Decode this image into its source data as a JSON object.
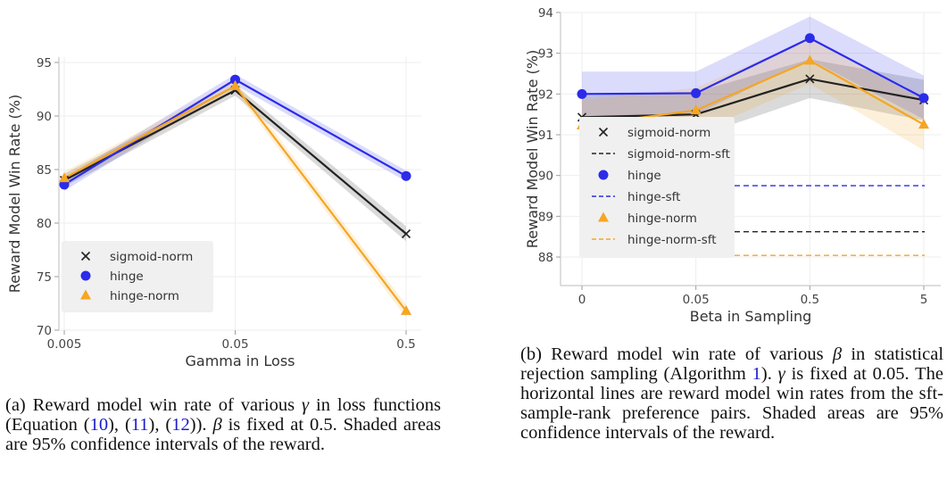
{
  "figures": [
    {
      "caption": {
        "label": "(a)",
        "parts": [
          {
            "t": "Reward model win rate of various "
          },
          {
            "t": "γ",
            "sym": true
          },
          {
            "t": " in loss functions (Equation ("
          },
          {
            "t": "10",
            "ref": true
          },
          {
            "t": "), ("
          },
          {
            "t": "11",
            "ref": true
          },
          {
            "t": "), ("
          },
          {
            "t": "12",
            "ref": true
          },
          {
            "t": ")). "
          },
          {
            "t": "β",
            "sym": true
          },
          {
            "t": " is fixed at 0.5. Shaded areas are 95% confidence intervals of the reward."
          }
        ]
      }
    },
    {
      "caption": {
        "label": "(b)",
        "parts": [
          {
            "t": "Reward model win rate of various "
          },
          {
            "t": "β",
            "sym": true
          },
          {
            "t": " in statistical rejection sampling (Algorithm "
          },
          {
            "t": "1",
            "ref": true
          },
          {
            "t": "). "
          },
          {
            "t": "γ",
            "sym": true
          },
          {
            "t": " is fixed at 0.05. The horizontal lines are reward model win rates from the sft-sample-rank preference pairs. Shaded areas are 95% confidence intervals of the reward."
          }
        ]
      }
    }
  ],
  "chart_data": [
    {
      "type": "line",
      "title": "",
      "xlabel": "Gamma in Loss",
      "ylabel": "Reward Model Win Rate (%)",
      "categories": [
        "0.005",
        "0.05",
        "0.5"
      ],
      "ylim": [
        70,
        95.5
      ],
      "yticks": [
        70,
        75,
        80,
        85,
        90,
        95
      ],
      "grid": true,
      "legend_placement": "lower-left",
      "series": [
        {
          "name": "sigmoid-norm",
          "marker": "x",
          "color": "#222222",
          "values": [
            84.0,
            92.4,
            79.0
          ],
          "ci_low": [
            83.4,
            91.9,
            78.3
          ],
          "ci_high": [
            84.6,
            92.9,
            79.7
          ]
        },
        {
          "name": "hinge",
          "marker": "circle",
          "color": "#2b2bea",
          "values": [
            83.6,
            93.4,
            84.4
          ],
          "ci_low": [
            83.0,
            92.9,
            83.9
          ],
          "ci_high": [
            84.2,
            93.9,
            84.9
          ]
        },
        {
          "name": "hinge-norm",
          "marker": "triangle",
          "color": "#f5a623",
          "values": [
            84.2,
            92.8,
            71.8
          ],
          "ci_low": [
            83.6,
            92.3,
            71.2
          ],
          "ci_high": [
            84.8,
            93.3,
            72.4
          ]
        }
      ]
    },
    {
      "type": "line",
      "title": "",
      "xlabel": "Beta in Sampling",
      "ylabel": "Reward Model Win Rate (%)",
      "categories": [
        "0",
        "0.05",
        "0.5",
        "5"
      ],
      "ylim": [
        87.3,
        94.0
      ],
      "yticks": [
        88,
        89,
        90,
        91,
        92,
        93,
        94
      ],
      "grid": true,
      "legend_placement": "lower-left",
      "series": [
        {
          "name": "sigmoid-norm",
          "marker": "x",
          "color": "#222222",
          "values": [
            91.43,
            91.5,
            92.37,
            91.85
          ],
          "ci_low": [
            90.9,
            90.95,
            91.9,
            91.35
          ],
          "ci_high": [
            91.95,
            92.05,
            92.85,
            92.35
          ]
        },
        {
          "name": "hinge",
          "marker": "circle",
          "color": "#2b2bea",
          "values": [
            92.0,
            92.02,
            93.37,
            91.9
          ],
          "ci_low": [
            91.45,
            91.5,
            92.85,
            91.38
          ],
          "ci_high": [
            92.55,
            92.55,
            93.9,
            92.45
          ]
        },
        {
          "name": "hinge-norm",
          "marker": "triangle",
          "color": "#f5a623",
          "values": [
            91.23,
            91.6,
            92.82,
            91.25
          ],
          "ci_low": [
            90.6,
            91.05,
            92.25,
            90.62
          ],
          "ci_high": [
            91.85,
            92.15,
            93.35,
            91.85
          ]
        }
      ],
      "reference_lines": [
        {
          "name": "sigmoid-norm-sft",
          "color": "#222222",
          "value": 88.62
        },
        {
          "name": "hinge-sft",
          "color": "#2b2bea",
          "value": 89.75
        },
        {
          "name": "hinge-norm-sft",
          "color": "#f5a623",
          "value": 88.04
        }
      ],
      "legend_order": [
        "sigmoid-norm",
        "sigmoid-norm-sft",
        "hinge",
        "hinge-sft",
        "hinge-norm",
        "hinge-norm-sft"
      ]
    }
  ]
}
